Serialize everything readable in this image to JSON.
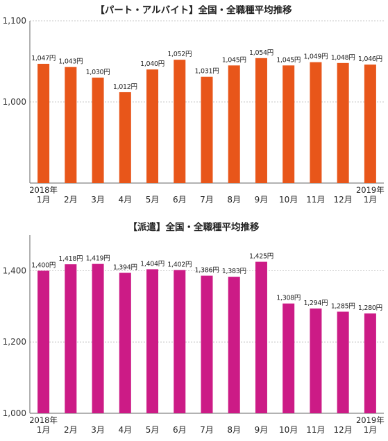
{
  "chart_data": [
    {
      "type": "bar",
      "title": "【パート・アルバイト】全国・全職種平均推移",
      "color": "#e8561a",
      "ylim": [
        900,
        1100
      ],
      "yticks": [
        "1,000",
        "1,100"
      ],
      "ytick_values": [
        1000,
        1100
      ],
      "year_start_label": "2018年",
      "year_end_label": "2019年",
      "categories": [
        "1月",
        "2月",
        "3月",
        "4月",
        "5月",
        "6月",
        "7月",
        "8月",
        "9月",
        "10月",
        "11月",
        "12月",
        "1月"
      ],
      "values": [
        1047,
        1043,
        1030,
        1012,
        1040,
        1052,
        1031,
        1045,
        1054,
        1045,
        1049,
        1048,
        1046
      ],
      "value_labels": [
        "1,047円",
        "1,043円",
        "1,030円",
        "1,012円",
        "1,040円",
        "1,052円",
        "1,031円",
        "1,045円",
        "1,054円",
        "1,045円",
        "1,049円",
        "1,048円",
        "1,046円"
      ]
    },
    {
      "type": "bar",
      "title": "【派遣】全国・全職種平均推移",
      "color": "#cc1b86",
      "ylim": [
        1000,
        1500
      ],
      "yticks": [
        "1,000",
        "1,200",
        "1,400"
      ],
      "ytick_values": [
        1000,
        1200,
        1400
      ],
      "year_start_label": "2018年",
      "year_end_label": "2019年",
      "categories": [
        "1月",
        "2月",
        "3月",
        "4月",
        "5月",
        "6月",
        "7月",
        "8月",
        "9月",
        "10月",
        "11月",
        "12月",
        "1月"
      ],
      "values": [
        1400,
        1418,
        1419,
        1394,
        1404,
        1402,
        1386,
        1383,
        1425,
        1308,
        1294,
        1285,
        1280
      ],
      "value_labels": [
        "1,400円",
        "1,418円",
        "1,419円",
        "1,394円",
        "1,404円",
        "1,402円",
        "1,386円",
        "1,383円",
        "1,425円",
        "1,308円",
        "1,294円",
        "1,285円",
        "1,280円"
      ]
    }
  ]
}
